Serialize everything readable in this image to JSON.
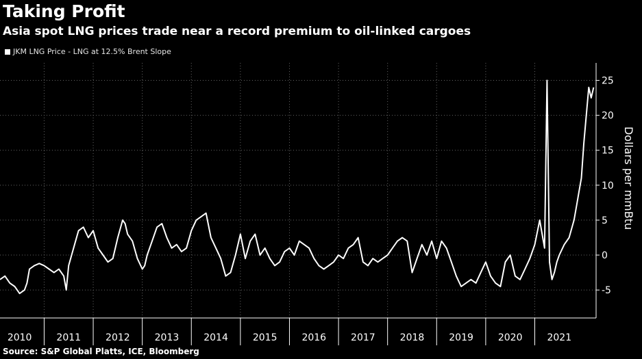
{
  "header": {
    "title": "Taking Profit",
    "subtitle": "Asia spot LNG prices trade near a record premium to oil-linked cargoes"
  },
  "legend": {
    "label": "JKM LNG Price - LNG at 12.5% Brent Slope"
  },
  "source": "Source: S&P Global Platts, ICE, Bloomberg",
  "colors": {
    "background": "#000000",
    "line": "#ffffff",
    "grid": "#666666"
  },
  "chart_data": {
    "type": "line",
    "title": "Taking Profit",
    "subtitle": "Asia spot LNG prices trade near a record premium to oil-linked cargoes",
    "ylabel": "Dollars per mmBtu",
    "xlabel": "",
    "xlim": [
      2009.6,
      2021.75
    ],
    "ylim": [
      -9,
      27.5
    ],
    "y_ticks": [
      -5,
      0,
      5,
      10,
      15,
      20,
      25
    ],
    "y_tick_labels": [
      "-5",
      "0",
      "5",
      "10",
      "15",
      "20",
      "25"
    ],
    "x_ticks": [
      2010,
      2011,
      2012,
      2013,
      2014,
      2015,
      2016,
      2017,
      2018,
      2019,
      2020,
      2021
    ],
    "x_tick_labels": [
      "2010",
      "2011",
      "2012",
      "2013",
      "2014",
      "2015",
      "2016",
      "2017",
      "2018",
      "2019",
      "2020",
      "2021"
    ],
    "grid": true,
    "legend_position": "top-left",
    "series": [
      {
        "name": "JKM LNG Price - LNG at 12.5% Brent Slope",
        "x": [
          2009.6,
          2009.7,
          2009.8,
          2009.9,
          2010.0,
          2010.1,
          2010.15,
          2010.2,
          2010.3,
          2010.4,
          2010.5,
          2010.6,
          2010.7,
          2010.8,
          2010.9,
          2010.95,
          2011.0,
          2011.1,
          2011.2,
          2011.3,
          2011.4,
          2011.5,
          2011.6,
          2011.7,
          2011.8,
          2011.9,
          2012.0,
          2012.1,
          2012.15,
          2012.2,
          2012.3,
          2012.4,
          2012.5,
          2012.55,
          2012.6,
          2012.7,
          2012.8,
          2012.9,
          2013.0,
          2013.1,
          2013.2,
          2013.3,
          2013.4,
          2013.5,
          2013.6,
          2013.7,
          2013.8,
          2013.9,
          2014.0,
          2014.1,
          2014.2,
          2014.3,
          2014.4,
          2014.5,
          2014.6,
          2014.7,
          2014.8,
          2014.9,
          2015.0,
          2015.1,
          2015.2,
          2015.3,
          2015.4,
          2015.5,
          2015.6,
          2015.7,
          2015.8,
          2015.9,
          2016.0,
          2016.1,
          2016.2,
          2016.3,
          2016.4,
          2016.5,
          2016.6,
          2016.7,
          2016.8,
          2016.9,
          2017.0,
          2017.1,
          2017.2,
          2017.3,
          2017.4,
          2017.5,
          2017.6,
          2017.7,
          2017.8,
          2017.9,
          2018.0,
          2018.1,
          2018.2,
          2018.3,
          2018.4,
          2018.5,
          2018.6,
          2018.7,
          2018.8,
          2018.9,
          2019.0,
          2019.1,
          2019.2,
          2019.3,
          2019.4,
          2019.5,
          2019.6,
          2019.7,
          2019.8,
          2019.9,
          2020.0,
          2020.1,
          2020.2,
          2020.3,
          2020.4,
          2020.5,
          2020.6,
          2020.7,
          2020.75,
          2020.8,
          2020.85,
          2020.9,
          2020.95,
          2021.0,
          2021.1,
          2021.2,
          2021.3,
          2021.35,
          2021.4,
          2021.45,
          2021.5,
          2021.55,
          2021.6,
          2021.65,
          2021.7
        ],
        "values": [
          -3.5,
          -3,
          -4,
          -4.5,
          -5.5,
          -5,
          -4,
          -2,
          -1.5,
          -1.2,
          -1.5,
          -2,
          -2.5,
          -2,
          -3,
          -5,
          -1.5,
          1,
          3.5,
          4,
          2.5,
          3.5,
          1,
          0,
          -1,
          -0.5,
          2.5,
          5,
          4.5,
          3,
          2,
          -0.5,
          -2,
          -1.5,
          0,
          2,
          4,
          4.5,
          2.5,
          1,
          1.5,
          0.5,
          1,
          3.5,
          5,
          5.5,
          6,
          2.5,
          1,
          -0.5,
          -3,
          -2.5,
          0,
          3,
          -0.5,
          2,
          3,
          0,
          1,
          -0.5,
          -1.5,
          -1,
          0.5,
          1,
          0,
          2,
          1.5,
          1,
          -0.5,
          -1.5,
          -2,
          -1.5,
          -1,
          0,
          -0.5,
          1,
          1.5,
          2.5,
          -1,
          -1.5,
          -0.5,
          -1,
          -0.5,
          0,
          1,
          2,
          2.5,
          2,
          -2.5,
          -0.5,
          1.5,
          0,
          2,
          -0.5,
          2,
          1,
          -1,
          -3,
          -4.5,
          -4,
          -3.5,
          -4,
          -2.5,
          -1,
          -3,
          -4,
          -4.5,
          -1,
          0,
          -3,
          -3.5,
          -2,
          -0.5,
          1.5,
          5,
          1,
          25,
          -1,
          -3.5,
          -2.5,
          -1,
          0,
          1.5,
          2.5,
          5,
          7,
          9,
          11,
          16,
          20,
          24,
          22.5,
          24
        ]
      }
    ]
  }
}
